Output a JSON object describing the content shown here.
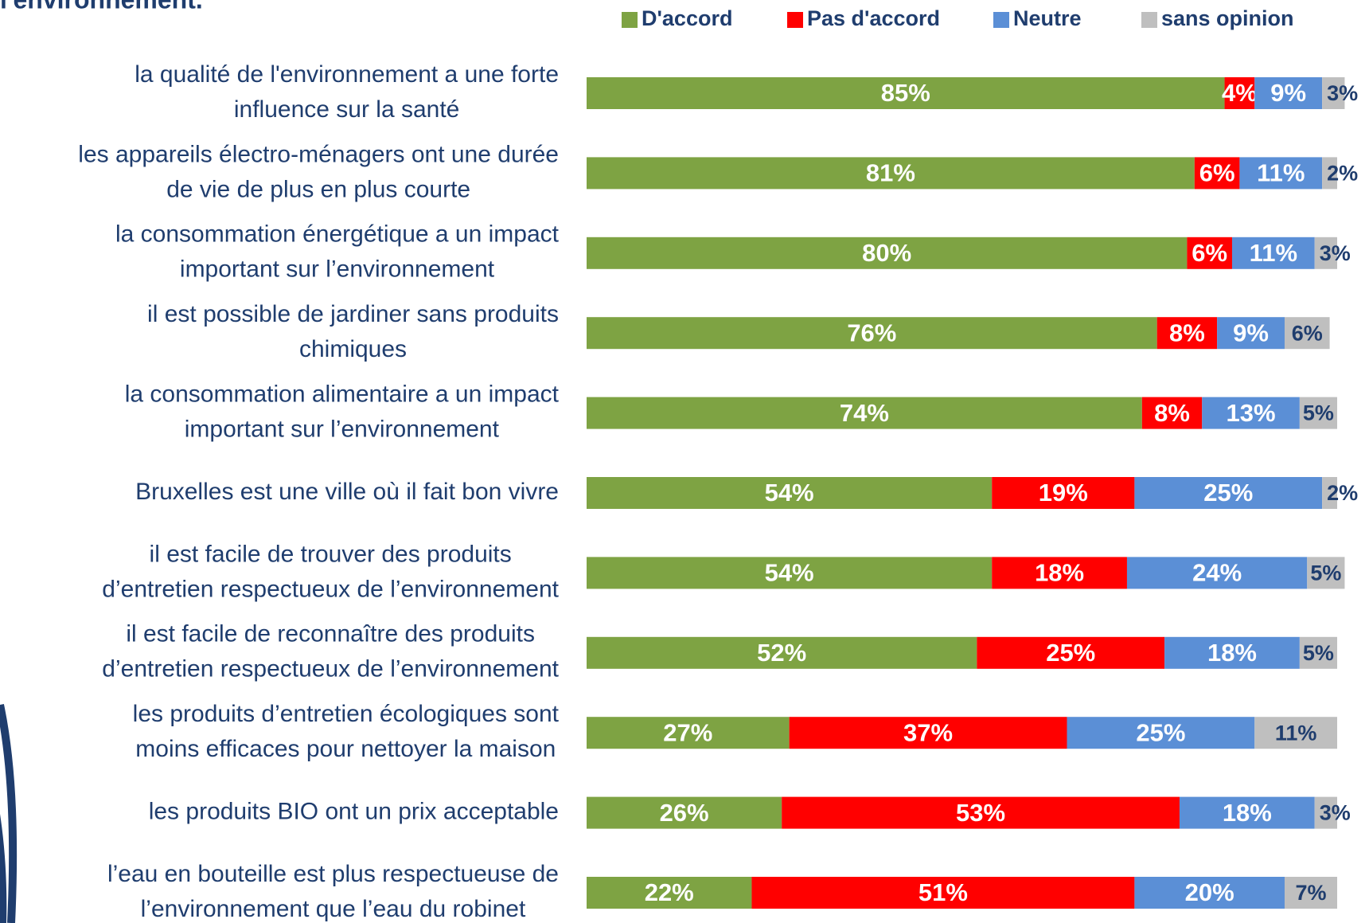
{
  "chart_data": {
    "type": "stacked-bar-horizontal",
    "title": "l'environnement.",
    "categories": [
      [
        "la qualité de l'environnement a une forte",
        "influence sur la santé"
      ],
      [
        "les appareils électro-ménagers ont une durée",
        "de vie de plus en plus courte"
      ],
      [
        "la consommation énergétique a un impact",
        "important sur l’environnement"
      ],
      [
        "il est possible de jardiner sans produits",
        "chimiques"
      ],
      [
        "la consommation alimentaire a un impact",
        "important sur l’environnement"
      ],
      [
        "Bruxelles est une ville où il fait bon vivre"
      ],
      [
        "il est facile de trouver des produits",
        "d’entretien respectueux de l’environnement"
      ],
      [
        "il est facile de reconnaître des produits",
        "d’entretien respectueux de l’environnement"
      ],
      [
        "les produits d’entretien écologiques sont",
        "moins efficaces pour nettoyer la maison"
      ],
      [
        "les produits BIO ont un prix acceptable"
      ],
      [
        "l’eau en bouteille est plus respectueuse de",
        "l’environnement que l’eau du robinet"
      ]
    ],
    "series": [
      {
        "name": "D'accord",
        "color": "#7ea343",
        "values": [
          85,
          81,
          80,
          76,
          74,
          54,
          54,
          52,
          27,
          26,
          22
        ],
        "value_labels": [
          "85%",
          "81%",
          "80%",
          "76%",
          "74%",
          "54%",
          "54%",
          "52%",
          "27%",
          "26%",
          "22%"
        ]
      },
      {
        "name": "Pas d'accord",
        "color": "#ff0000",
        "values": [
          4,
          6,
          6,
          8,
          8,
          19,
          18,
          25,
          37,
          53,
          51
        ],
        "value_labels": [
          "4%",
          "6%",
          "6%",
          "8%",
          "8%",
          "19%",
          "18%",
          "25%",
          "37%",
          "53%",
          "51%"
        ]
      },
      {
        "name": "Neutre",
        "color": "#5b8fd6",
        "values": [
          9,
          11,
          11,
          9,
          13,
          25,
          24,
          18,
          25,
          18,
          20
        ],
        "value_labels": [
          "9%",
          "11%",
          "11%",
          "9%",
          "13%",
          "25%",
          "24%",
          "18%",
          "25%",
          "18%",
          "20%"
        ]
      },
      {
        "name": "sans opinion",
        "color": "#bfbfbf",
        "values": [
          3,
          2,
          3,
          6,
          5,
          2,
          5,
          5,
          11,
          3,
          7
        ],
        "value_labels": [
          "3%",
          "2%",
          "3%",
          "6%",
          "5%",
          "2%",
          "5%",
          "5%",
          "11%",
          "3%",
          "7%"
        ]
      }
    ],
    "xlim": [
      0,
      100
    ]
  }
}
